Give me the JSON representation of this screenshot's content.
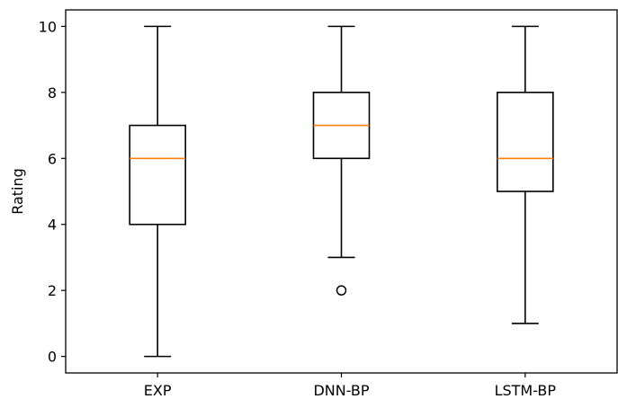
{
  "chart_data": {
    "type": "box",
    "title": "",
    "xlabel": "",
    "ylabel": "Rating",
    "ylim": [
      -0.5,
      10.5
    ],
    "yticks": [
      0,
      2,
      4,
      6,
      8,
      10
    ],
    "categories": [
      "EXP",
      "DNN-BP",
      "LSTM-BP"
    ],
    "boxes": [
      {
        "label": "EXP",
        "whisker_low": 0,
        "q1": 4,
        "median": 6,
        "q3": 7,
        "whisker_high": 10,
        "outliers": []
      },
      {
        "label": "DNN-BP",
        "whisker_low": 3,
        "q1": 6,
        "median": 7,
        "q3": 8,
        "whisker_high": 10,
        "outliers": [
          2
        ]
      },
      {
        "label": "LSTM-BP",
        "whisker_low": 1,
        "q1": 5,
        "median": 6,
        "q3": 8,
        "whisker_high": 10,
        "outliers": []
      }
    ],
    "median_color": "#ff7f0e",
    "box_color": "#000000",
    "grid": false,
    "legend": "none"
  }
}
